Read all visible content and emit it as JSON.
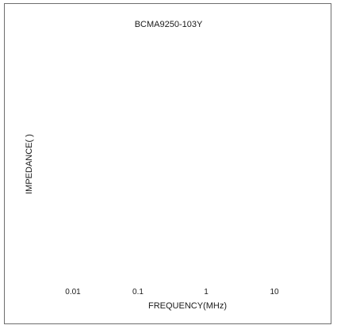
{
  "chart_data": {
    "type": "line",
    "title": "BCMA9250-103Y",
    "xlabel": "FREQUENCY(MHz)",
    "ylabel": "IMPEDANCE( )",
    "x_scale": "log",
    "x_ticks": [
      "0.01",
      "0.1",
      "1",
      "10"
    ],
    "series": []
  }
}
